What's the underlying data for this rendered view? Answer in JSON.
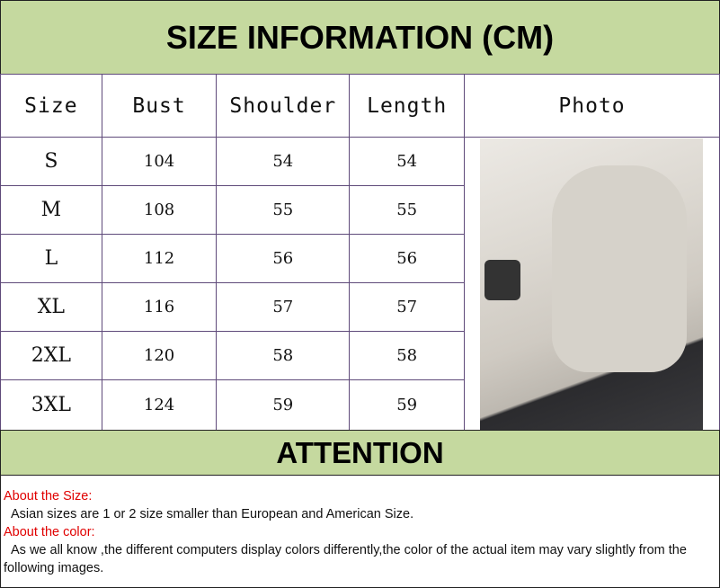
{
  "title": "SIZE INFORMATION (CM)",
  "headers": [
    "Size",
    "Bust",
    "Shoulder",
    "Length",
    "Photo"
  ],
  "rows": [
    [
      "S",
      "104",
      "54",
      "54"
    ],
    [
      "M",
      "108",
      "55",
      "55"
    ],
    [
      "L",
      "112",
      "56",
      "56"
    ],
    [
      "XL",
      "116",
      "57",
      "57"
    ],
    [
      "2XL",
      "120",
      "58",
      "58"
    ],
    [
      "3XL",
      "124",
      "59",
      "59"
    ]
  ],
  "attention": "ATTENTION",
  "notes": {
    "size_heading": "About the Size:",
    "size_text": "Asian sizes are 1 or 2 size smaller than European and American Size.",
    "color_heading": "About the color:",
    "color_text": "As we all know ,the different computers display colors differently,the color of the actual item may vary slightly from the following images."
  },
  "colors": {
    "band": "#c5d99f",
    "border": "#5f4a7a",
    "heading_red": "#e00000"
  }
}
